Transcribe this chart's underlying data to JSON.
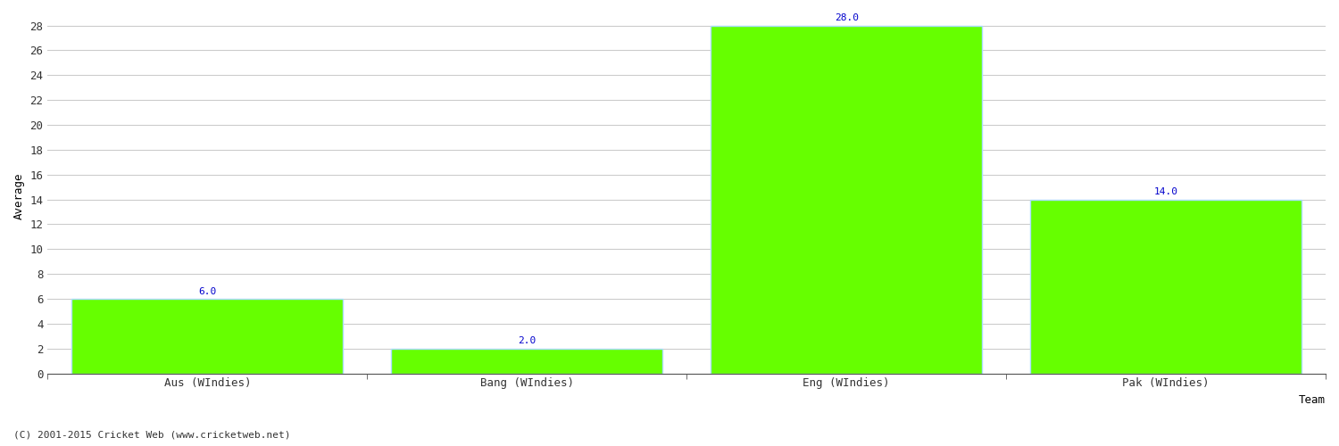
{
  "categories": [
    "Aus (WIndies)",
    "Bang (WIndies)",
    "Eng (WIndies)",
    "Pak (WIndies)"
  ],
  "values": [
    6.0,
    2.0,
    28.0,
    14.0
  ],
  "bar_color": "#66ff00",
  "bar_edge_color": "#aaddff",
  "value_color": "#0000cc",
  "xlabel": "Team",
  "ylabel": "Average",
  "ylim_max": 28,
  "yticks": [
    0,
    2,
    4,
    6,
    8,
    10,
    12,
    14,
    16,
    18,
    20,
    22,
    24,
    26,
    28
  ],
  "grid_color": "#cccccc",
  "background_color": "#ffffff",
  "footer": "(C) 2001-2015 Cricket Web (www.cricketweb.net)",
  "value_fontsize": 8,
  "label_fontsize": 9,
  "tick_fontsize": 9,
  "footer_fontsize": 8
}
